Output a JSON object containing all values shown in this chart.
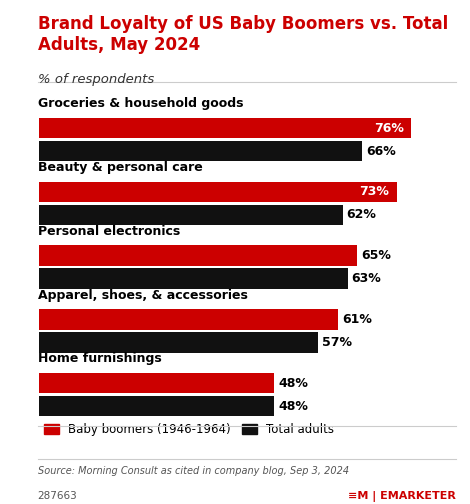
{
  "title": "Brand Loyalty of US Baby Boomers vs. Total\nAdults, May 2024",
  "subtitle": "% of respondents",
  "categories": [
    "Groceries & household goods",
    "Beauty & personal care",
    "Personal electronics",
    "Apparel, shoes, & accessories",
    "Home furnishings"
  ],
  "baby_boomers": [
    76,
    73,
    65,
    61,
    48
  ],
  "total_adults": [
    66,
    62,
    63,
    57,
    48
  ],
  "bar_color_red": "#CC0000",
  "bar_color_black": "#111111",
  "background_color": "#ffffff",
  "title_color": "#CC0000",
  "subtitle_color": "#333333",
  "category_color": "#000000",
  "label_color_white": "#ffffff",
  "label_color_black": "#000000",
  "source_text": "Source: Morning Consult as cited in company blog, Sep 3, 2024",
  "footer_id": "287663",
  "legend_boomer": "Baby boomers (1946-1964)",
  "legend_adults": "Total adults",
  "xlim": [
    0,
    82
  ]
}
